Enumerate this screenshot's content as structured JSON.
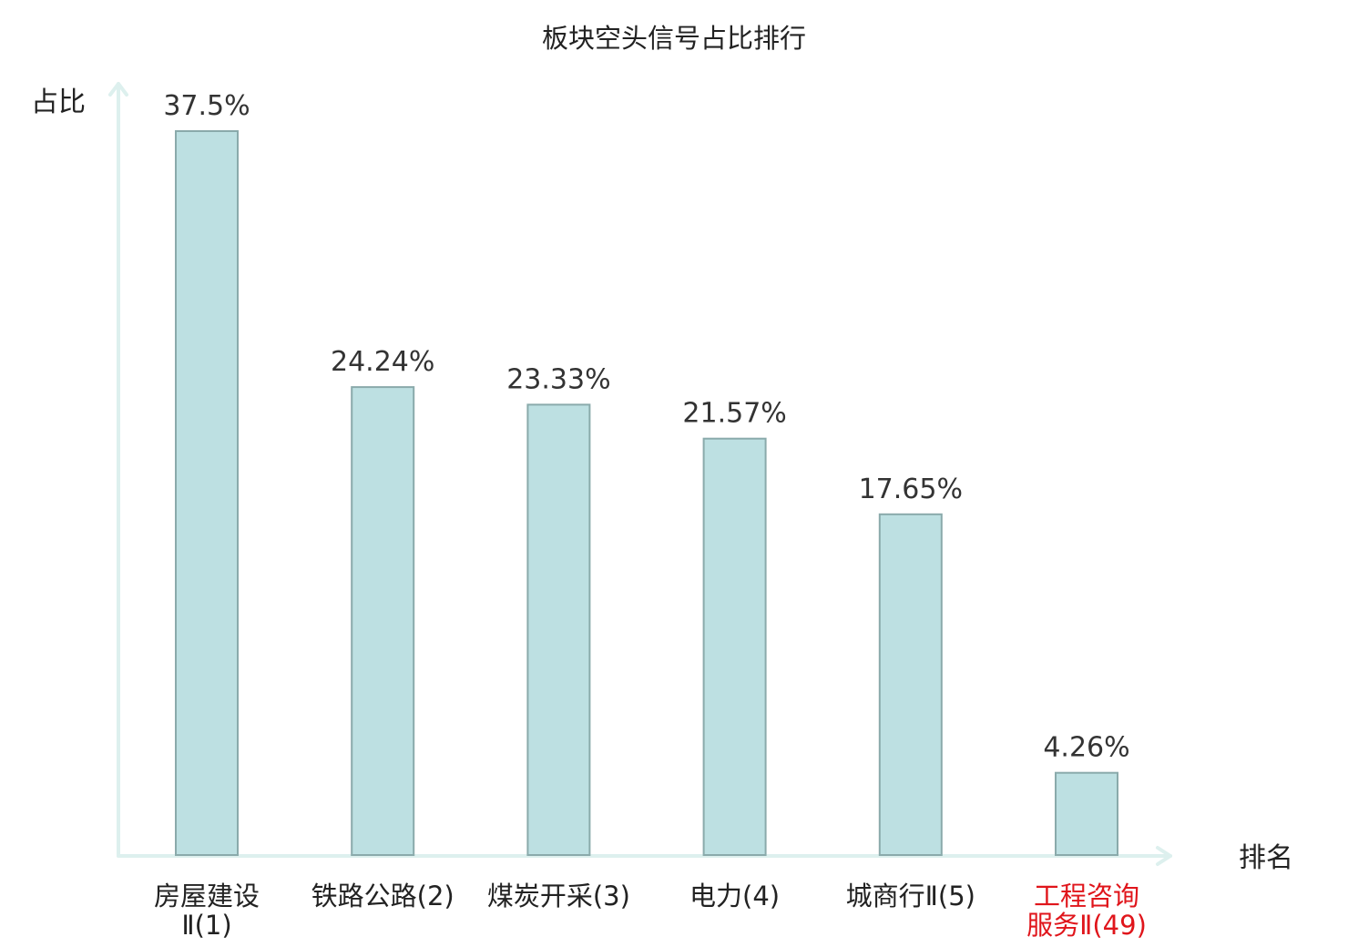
{
  "chart_data": {
    "type": "bar",
    "title": "板块空头信号占比排行",
    "ylabel": "占比",
    "xlabel": "排名",
    "ylim": [
      0,
      37.5
    ],
    "grid": false,
    "legend": "none",
    "categories": [
      [
        "房屋建设",
        "Ⅱ(1)"
      ],
      [
        "铁路公路(2)"
      ],
      [
        "煤炭开采(3)"
      ],
      [
        "电力(4)"
      ],
      [
        "城商行Ⅱ(5)"
      ],
      [
        "工程咨询",
        "服务Ⅱ(49)"
      ]
    ],
    "values": [
      37.5,
      24.24,
      23.33,
      21.57,
      17.65,
      4.26
    ],
    "value_labels": [
      "37.5%",
      "24.24%",
      "23.33%",
      "21.57%",
      "17.65%",
      "4.26%"
    ],
    "highlighted_index": 5,
    "colors": {
      "bar_fill": "#bde0e2",
      "bar_stroke": "#8aaaab",
      "axis": "#ddf0ee",
      "highlight_text": "#e0151b"
    }
  }
}
